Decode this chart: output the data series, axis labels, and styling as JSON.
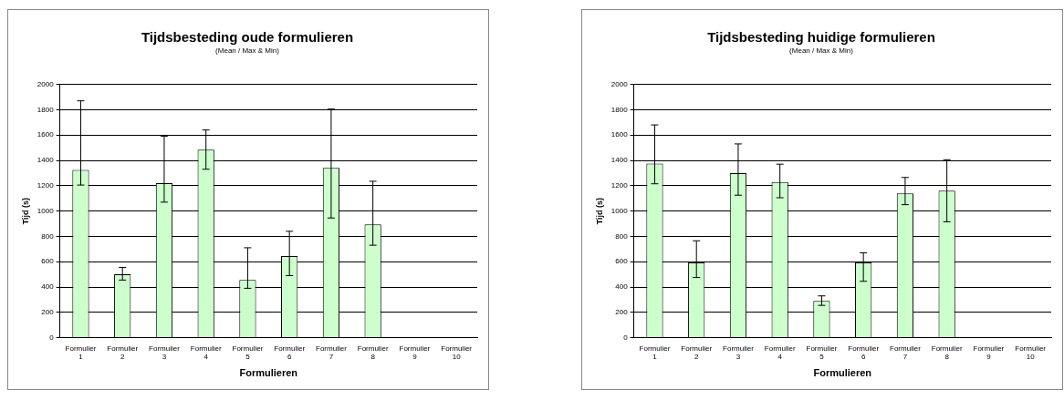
{
  "chart_data": [
    {
      "type": "bar",
      "title": "Tijdsbesteding oude formulieren",
      "subtitle": "(Mean / Max & Min)",
      "xlabel": "Formulieren",
      "ylabel": "Tijd (s)",
      "categories": [
        "Formulier 1",
        "Formulier 2",
        "Formulier 3",
        "Formulier 4",
        "Formulier 5",
        "Formulier 6",
        "Formulier 7",
        "Formulier 8",
        "Formulier 9",
        "Formulier 10"
      ],
      "values": [
        1325,
        500,
        1220,
        1485,
        455,
        645,
        1340,
        895,
        0,
        0
      ],
      "color": "#ccffcc",
      "errors": [
        [
          1205,
          1870
        ],
        [
          455,
          555
        ],
        [
          1070,
          1590
        ],
        [
          1330,
          1640
        ],
        [
          390,
          710
        ],
        [
          490,
          840
        ],
        [
          945,
          1805
        ],
        [
          730,
          1235
        ],
        null,
        null
      ],
      "ylim": [
        0,
        2000
      ],
      "yticks": [
        0,
        200,
        400,
        600,
        800,
        1000,
        1200,
        1400,
        1600,
        1800,
        2000
      ],
      "grid": "y",
      "legend": false
    },
    {
      "type": "bar",
      "title": "Tijdsbesteding huidige formulieren",
      "subtitle": "(Mean / Max & Min)",
      "xlabel": "Formulieren",
      "ylabel": "Tijd (s)",
      "categories": [
        "Formulier 1",
        "Formulier 2",
        "Formulier 3",
        "Formulier 4",
        "Formulier 5",
        "Formulier 6",
        "Formulier 7",
        "Formulier 8",
        "Formulier 9",
        "Formulier 10"
      ],
      "values": [
        1375,
        595,
        1300,
        1230,
        290,
        595,
        1140,
        1160,
        0,
        0
      ],
      "color": "#ccffcc",
      "errors": [
        [
          1215,
          1680
        ],
        [
          475,
          765
        ],
        [
          1125,
          1530
        ],
        [
          1105,
          1370
        ],
        [
          255,
          330
        ],
        [
          445,
          670
        ],
        [
          1050,
          1265
        ],
        [
          915,
          1405
        ],
        null,
        null
      ],
      "ylim": [
        0,
        2000
      ],
      "yticks": [
        0,
        200,
        400,
        600,
        800,
        1000,
        1200,
        1400,
        1600,
        1800,
        2000
      ],
      "grid": "y",
      "legend": false
    }
  ]
}
